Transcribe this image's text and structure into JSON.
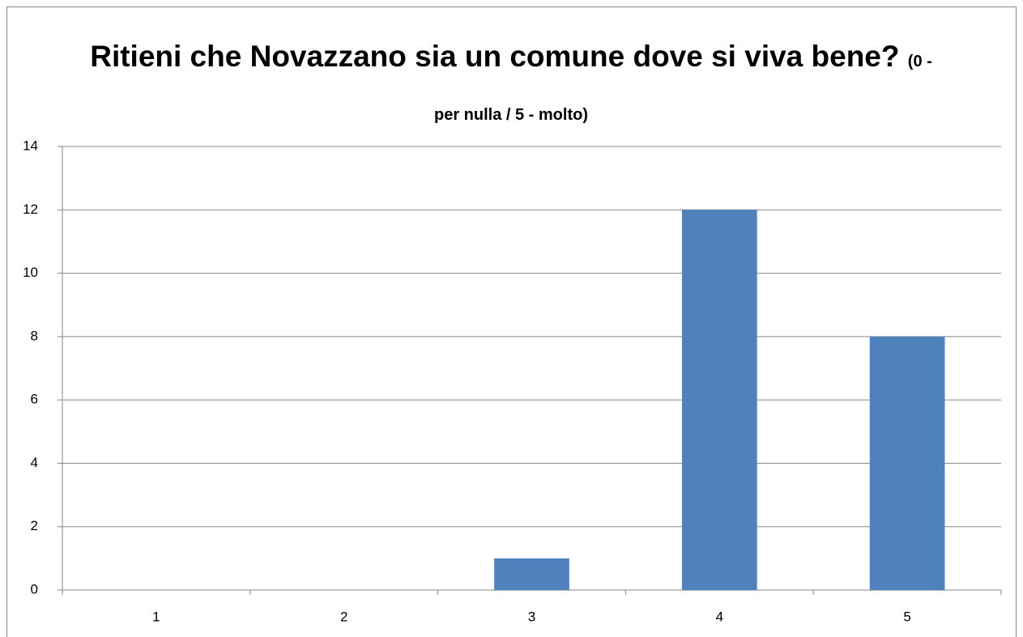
{
  "chart_data": {
    "type": "bar",
    "title": "Ritieni che Novazzano sia un comune dove si viva bene?",
    "subtitle": "(0 - per nulla / 5 - molto)",
    "categories": [
      "1",
      "2",
      "3",
      "4",
      "5"
    ],
    "values": [
      0,
      0,
      1,
      12,
      8
    ],
    "color": "#4f81bd",
    "ylim": [
      0,
      14
    ],
    "yticks": [
      0,
      2,
      4,
      6,
      8,
      10,
      12,
      14
    ],
    "grid": true
  }
}
